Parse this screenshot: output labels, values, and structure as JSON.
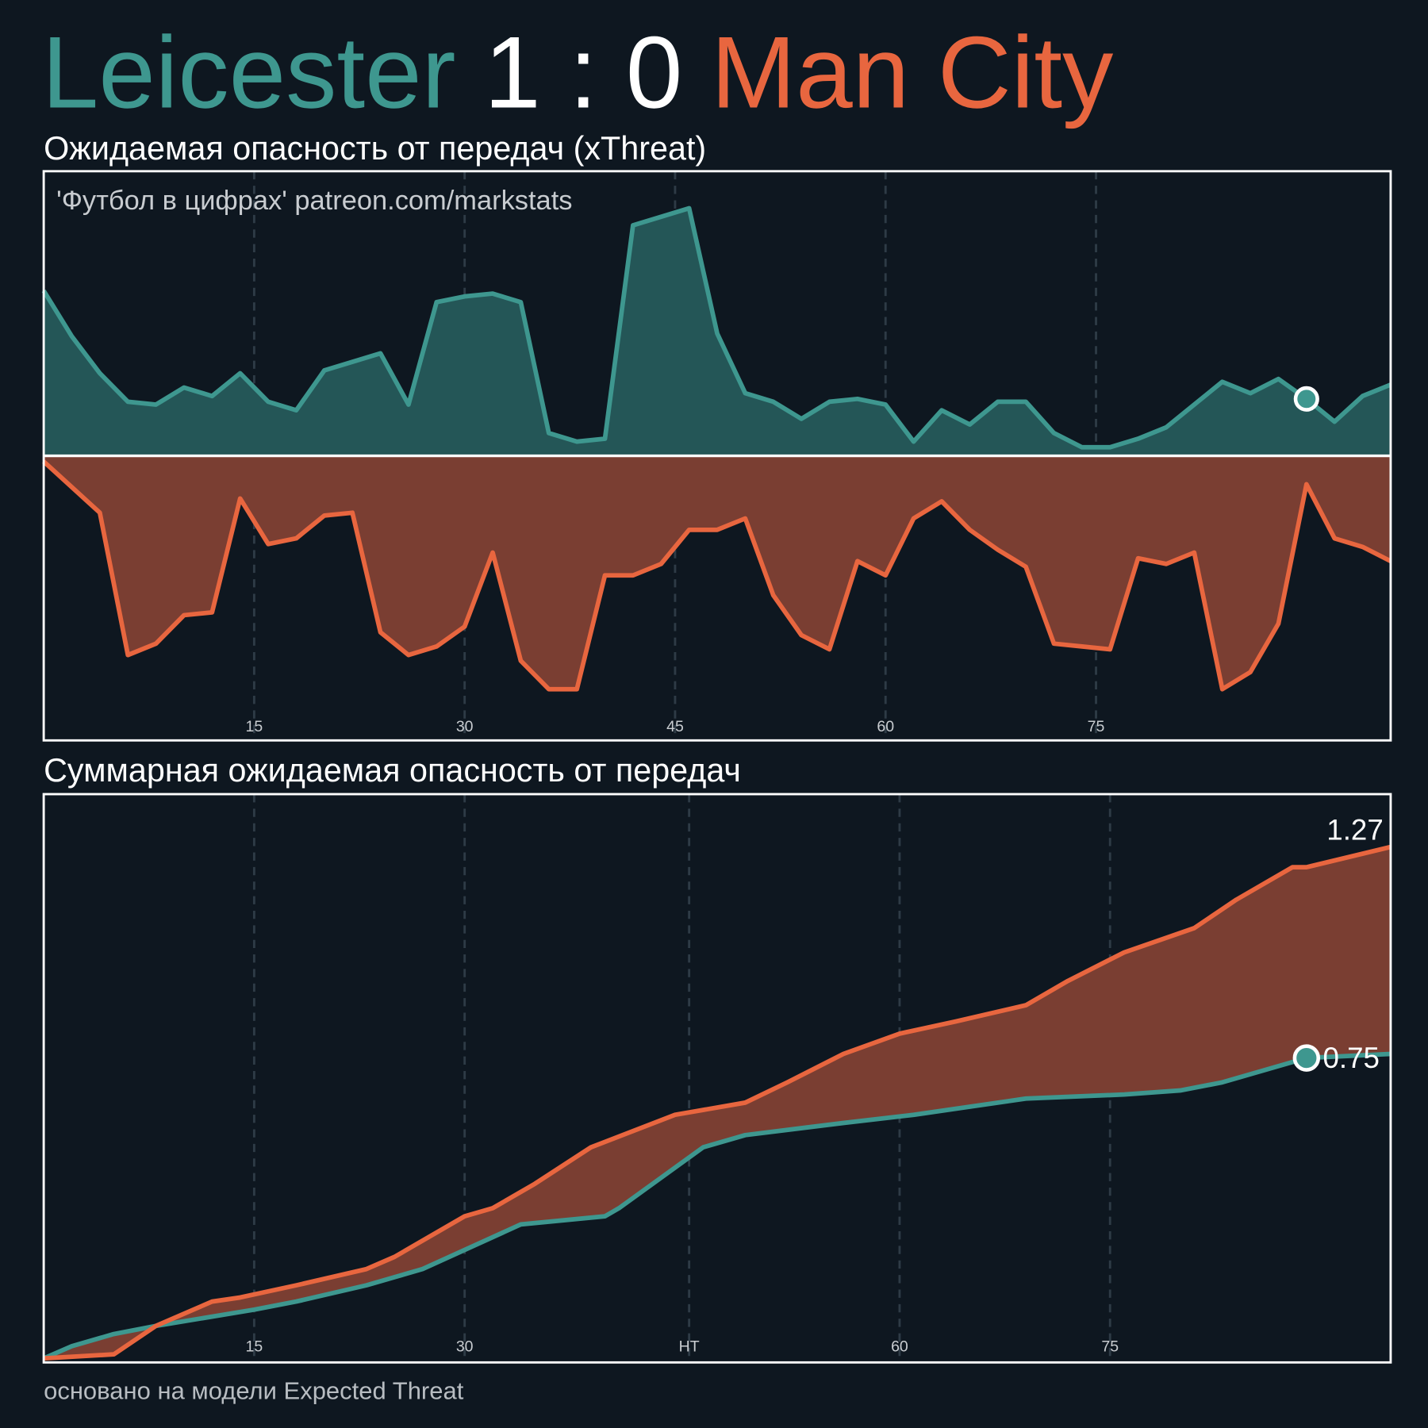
{
  "score": "1 : 0",
  "watermark": "'Футбол в цифрах' patreon.com/markstats",
  "footer": "основано на модели Expected Threat",
  "chart_data": [
    {
      "type": "mirrored-area",
      "title": "Ожидаемая опасность от передач (xThreat)",
      "x": [
        0,
        2,
        4,
        6,
        8,
        10,
        12,
        14,
        16,
        18,
        20,
        22,
        24,
        26,
        28,
        30,
        32,
        34,
        36,
        38,
        40,
        42,
        44,
        46,
        48,
        50,
        52,
        54,
        56,
        58,
        60,
        62,
        64,
        66,
        68,
        70,
        72,
        74,
        76,
        78,
        80,
        82,
        84,
        86,
        88,
        90,
        92,
        94,
        96
      ],
      "xlim": [
        0,
        96
      ],
      "xticks": [
        15,
        30,
        45,
        60,
        75
      ],
      "ylim": [
        -1,
        1
      ],
      "grid": true,
      "marker_x": 90,
      "series": [
        {
          "name": "Leicester",
          "color": "#3e978f",
          "values": [
            0.58,
            0.42,
            0.29,
            0.19,
            0.18,
            0.24,
            0.21,
            0.29,
            0.19,
            0.16,
            0.3,
            0.33,
            0.36,
            0.18,
            0.54,
            0.56,
            0.57,
            0.54,
            0.08,
            0.05,
            0.06,
            0.81,
            0.84,
            0.87,
            0.43,
            0.22,
            0.19,
            0.13,
            0.19,
            0.2,
            0.18,
            0.05,
            0.16,
            0.11,
            0.19,
            0.19,
            0.08,
            0.03,
            0.03,
            0.06,
            0.1,
            0.18,
            0.26,
            0.22,
            0.27,
            0.2,
            0.12,
            0.21,
            0.25
          ]
        },
        {
          "name": "Man City",
          "color": "#e8663f",
          "values": [
            0.02,
            0.11,
            0.2,
            0.7,
            0.66,
            0.56,
            0.55,
            0.15,
            0.31,
            0.29,
            0.21,
            0.2,
            0.62,
            0.7,
            0.67,
            0.6,
            0.34,
            0.72,
            0.82,
            0.82,
            0.42,
            0.42,
            0.38,
            0.26,
            0.26,
            0.22,
            0.49,
            0.63,
            0.68,
            0.37,
            0.42,
            0.22,
            0.16,
            0.26,
            0.33,
            0.39,
            0.66,
            0.67,
            0.68,
            0.36,
            0.38,
            0.34,
            0.82,
            0.76,
            0.59,
            0.1,
            0.29,
            0.32,
            0.37
          ]
        }
      ]
    },
    {
      "type": "cumulative-line",
      "title": "Суммарная ожидаемая опасность от передач",
      "xlim": [
        0,
        96
      ],
      "xticks": [
        15,
        30,
        {
          "value": 46,
          "label": "HT"
        },
        {
          "value": 61,
          "label": "60"
        },
        {
          "value": 76,
          "label": "75"
        }
      ],
      "ylim": [
        0,
        1.4
      ],
      "grid": true,
      "marker_x": 90,
      "series": [
        {
          "color": "#3e978f",
          "label_at_x": 90,
          "x": [
            0,
            2,
            5,
            8,
            15,
            18,
            23,
            27,
            34,
            40,
            41,
            47,
            50,
            57,
            62,
            70,
            77,
            81,
            84,
            90,
            96
          ],
          "values": [
            0.01,
            0.04,
            0.07,
            0.09,
            0.13,
            0.15,
            0.19,
            0.23,
            0.34,
            0.36,
            0.38,
            0.53,
            0.56,
            0.59,
            0.61,
            0.65,
            0.66,
            0.67,
            0.69,
            0.75,
            0.76
          ]
        },
        {
          "color": "#e8663f",
          "label_at_x": 96,
          "x": [
            0,
            5,
            8,
            12,
            14,
            18,
            23,
            25,
            30,
            32,
            35,
            39,
            45,
            50,
            53,
            57,
            61,
            65,
            70,
            73,
            77,
            82,
            85,
            89,
            90,
            96
          ],
          "values": [
            0.01,
            0.02,
            0.09,
            0.15,
            0.16,
            0.19,
            0.23,
            0.26,
            0.36,
            0.38,
            0.44,
            0.53,
            0.61,
            0.64,
            0.69,
            0.76,
            0.81,
            0.84,
            0.88,
            0.94,
            1.01,
            1.07,
            1.14,
            1.22,
            1.22,
            1.27
          ]
        }
      ]
    }
  ]
}
